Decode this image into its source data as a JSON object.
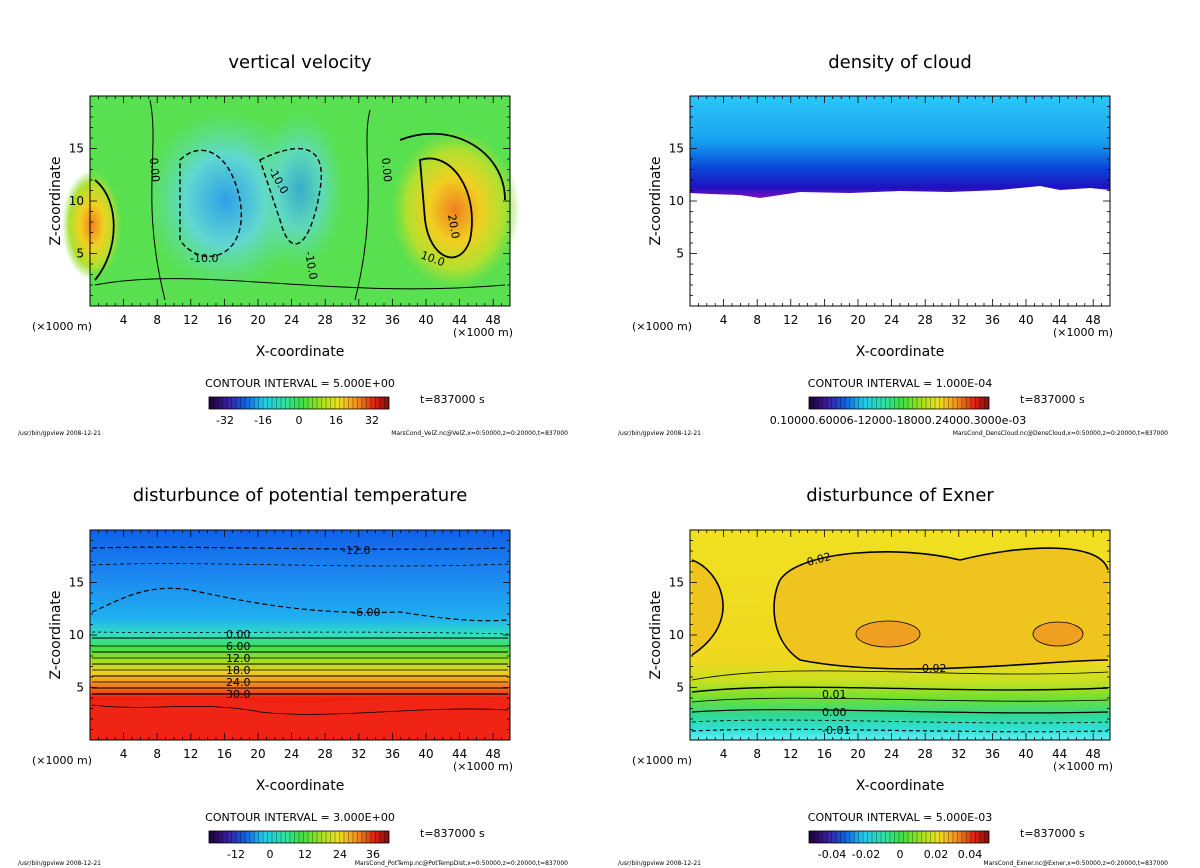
{
  "chart_data": [
    {
      "type": "heatmap",
      "title": "vertical velocity",
      "xlabel": "X-coordinate",
      "ylabel": "Z-coordinate",
      "x_unit": "(×1000 m)",
      "x_ticks": [
        "4",
        "8",
        "12",
        "16",
        "20",
        "24",
        "28",
        "32",
        "36",
        "40",
        "44",
        "48"
      ],
      "y_ticks": [
        "5",
        "10",
        "15"
      ],
      "xlim": [
        0,
        50
      ],
      "ylim": [
        0,
        20
      ],
      "contour_interval": "CONTOUR INTERVAL = 5.000E+00",
      "colorbar_ticks": [
        "-32",
        "-16",
        "0",
        "16",
        "32"
      ],
      "time_label": "t=837000 s",
      "contour_labels": [
        "0.00",
        "0.00",
        "-10.0",
        "-10.0",
        "-10.0",
        "10.0",
        "20.0"
      ],
      "footer_left": "/usr/bin/gpview  2008-12-21",
      "footer_right": "MarsCond_VelZ.nc@VelZ,x=0:50000,z=0:20000,t=837000"
    },
    {
      "type": "heatmap",
      "title": "density of cloud",
      "xlabel": "X-coordinate",
      "ylabel": "Z-coordinate",
      "x_unit": "(×1000 m)",
      "x_ticks": [
        "4",
        "8",
        "12",
        "16",
        "20",
        "24",
        "28",
        "32",
        "36",
        "40",
        "44",
        "48"
      ],
      "y_ticks": [
        "5",
        "10",
        "15"
      ],
      "xlim": [
        0,
        50
      ],
      "ylim": [
        0,
        20
      ],
      "contour_interval": "CONTOUR INTERVAL = 1.000E-04",
      "colorbar_ticks": [
        "0.10000.60006-12000-18000.24000.3000e-03"
      ],
      "time_label": "t=837000 s",
      "contour_labels": [],
      "footer_left": "/usr/bin/gpview  2008-12-21",
      "footer_right": "MarsCond_DensCloud.nc@DensCloud,x=0:50000,z=0:20000,t=837000"
    },
    {
      "type": "heatmap",
      "title": "disturbunce of potential temperature",
      "xlabel": "X-coordinate",
      "ylabel": "Z-coordinate",
      "x_unit": "(×1000 m)",
      "x_ticks": [
        "4",
        "8",
        "12",
        "16",
        "20",
        "24",
        "28",
        "32",
        "36",
        "40",
        "44",
        "48"
      ],
      "y_ticks": [
        "5",
        "10",
        "15"
      ],
      "xlim": [
        0,
        50
      ],
      "ylim": [
        0,
        20
      ],
      "contour_interval": "CONTOUR INTERVAL = 3.000E+00",
      "colorbar_ticks": [
        "-12",
        "0",
        "12",
        "24",
        "36"
      ],
      "time_label": "t=837000 s",
      "contour_labels": [
        "-12.0",
        "-6.00",
        "0.00",
        "6.00",
        "12.0",
        "18.0",
        "24.0",
        "30.0"
      ],
      "footer_left": "/usr/bin/gpview  2008-12-21",
      "footer_right": "MarsCond_PotTemp.nc@PotTempDist,x=0:50000,z=0:20000,t=837000"
    },
    {
      "type": "heatmap",
      "title": "disturbunce of Exner",
      "xlabel": "X-coordinate",
      "ylabel": "Z-coordinate",
      "x_unit": "(×1000 m)",
      "x_ticks": [
        "4",
        "8",
        "12",
        "16",
        "20",
        "24",
        "28",
        "32",
        "36",
        "40",
        "44",
        "48"
      ],
      "y_ticks": [
        "5",
        "10",
        "15"
      ],
      "xlim": [
        0,
        50
      ],
      "ylim": [
        0,
        20
      ],
      "contour_interval": "CONTOUR INTERVAL = 5.000E-03",
      "colorbar_ticks": [
        "-0.04",
        "-0.02",
        "0",
        "0.02",
        "0.04"
      ],
      "time_label": "t=837000 s",
      "contour_labels": [
        "0.02",
        "0.02",
        "0.01",
        "0.00",
        "-0.01"
      ],
      "footer_left": "/usr/bin/gpview  2008-12-21",
      "footer_right": "MarsCond_Exner.nc@Exner,x=0:50000,z=0:20000,t=837000"
    }
  ]
}
